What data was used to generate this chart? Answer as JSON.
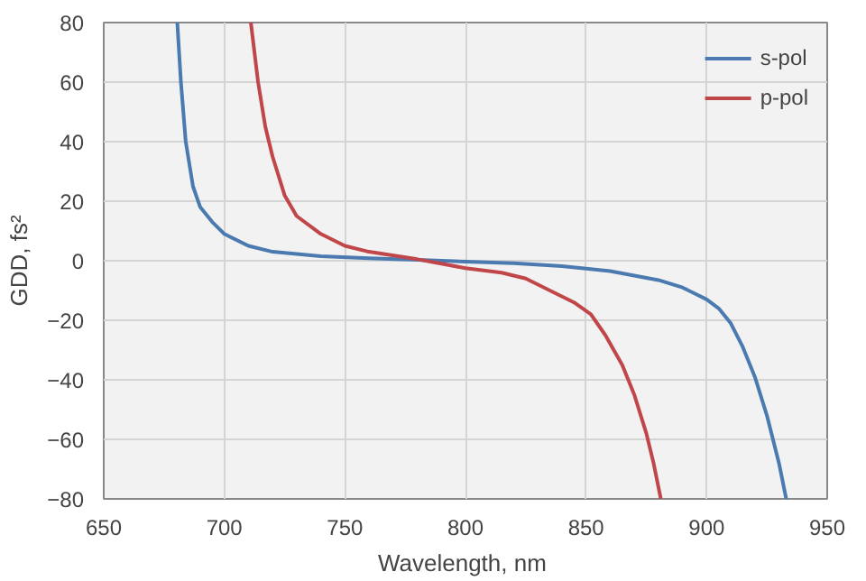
{
  "chart_data": {
    "type": "line",
    "xlabel": "Wavelength,  nm",
    "ylabel": "GDD, fs²",
    "xlim": [
      650,
      950
    ],
    "ylim": [
      -80,
      80
    ],
    "xticks": [
      650,
      700,
      750,
      800,
      850,
      900,
      950
    ],
    "yticks": [
      -80,
      -60,
      -40,
      -20,
      0,
      20,
      40,
      60,
      80
    ],
    "grid": true,
    "legend": "top right",
    "marker": "none",
    "line_style": "solid",
    "series": [
      {
        "name": "s-pol",
        "color": "#4a7ab0",
        "x": [
          680.5,
          682,
          684,
          687,
          690,
          695,
          700,
          710,
          720,
          740,
          760,
          780,
          800,
          820,
          840,
          860,
          880,
          890,
          900,
          905,
          910,
          915,
          920,
          925,
          930,
          933
        ],
        "values": [
          80,
          60,
          40,
          25,
          18,
          13,
          9,
          5,
          3,
          1.5,
          0.8,
          0.3,
          -0.3,
          -0.8,
          -1.8,
          -3.5,
          -6.5,
          -9,
          -13,
          -16,
          -21,
          -29,
          -39,
          -52,
          -68,
          -80
        ]
      },
      {
        "name": "p-pol",
        "color": "#c0464a",
        "x": [
          711,
          714,
          717,
          720,
          725,
          730,
          740,
          750,
          760,
          780,
          790,
          800,
          815,
          825,
          835,
          845,
          852,
          858,
          865,
          870,
          875,
          878,
          881
        ],
        "values": [
          80,
          60,
          45,
          35,
          22,
          15,
          9,
          5,
          3,
          0.5,
          -1,
          -2.5,
          -4,
          -6,
          -10,
          -14,
          -18,
          -25,
          -35,
          -45,
          -58,
          -68,
          -80
        ]
      }
    ]
  }
}
